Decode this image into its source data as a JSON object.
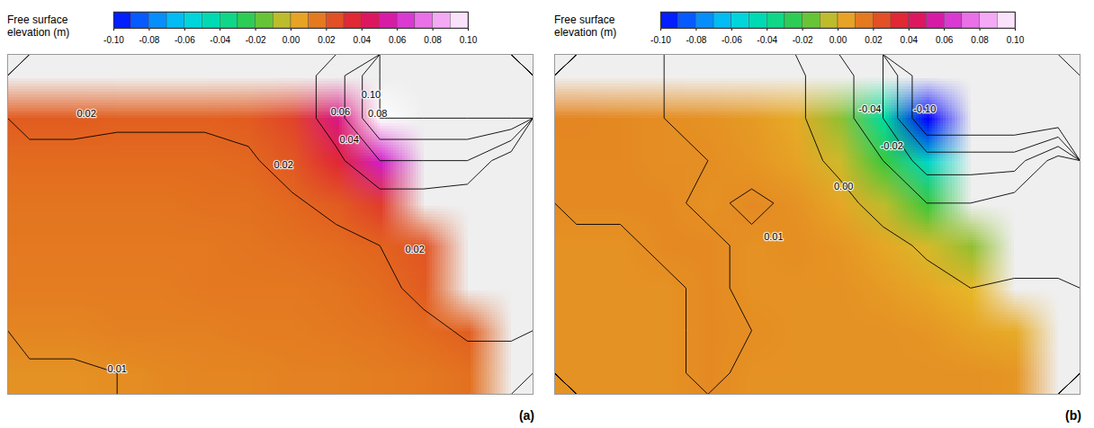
{
  "chart_data": [
    {
      "type": "contour",
      "panel_label": "(a)",
      "xlim": [
        0,
        12
      ],
      "ylim": [
        0,
        8
      ],
      "tick_labels": false,
      "colorbar": {
        "label": "Free surface elevation (m)",
        "range": [
          -0.1,
          0.1
        ],
        "ticks": [
          {
            "value": -0.1,
            "label": "-0.10"
          },
          {
            "value": -0.08,
            "label": "-0.08"
          },
          {
            "value": -0.06,
            "label": "-0.06"
          },
          {
            "value": -0.04,
            "label": "-0.04"
          },
          {
            "value": -0.02,
            "label": "-0.02"
          },
          {
            "value": 0,
            "label": "0.00"
          },
          {
            "value": 0.02,
            "label": "0.02"
          },
          {
            "value": 0.04,
            "label": "0.04"
          },
          {
            "value": 0.06,
            "label": "0.06"
          },
          {
            "value": 0.08,
            "label": "0.08"
          },
          {
            "value": 0.1,
            "label": "0.10"
          }
        ]
      },
      "contour_levels": [
        0.01,
        0.02,
        0.04,
        0.06,
        0.08,
        0.1
      ],
      "values": [
        [
          null,
          null,
          null,
          null,
          null,
          null,
          null,
          null,
          null,
          null,
          null,
          null
        ],
        [
          0.022,
          0.022,
          0.021,
          0.021,
          0.021,
          0.022,
          0.028,
          0.05,
          0.1,
          null,
          null,
          null
        ],
        [
          0.018,
          0.018,
          0.018,
          0.018,
          0.018,
          0.019,
          0.023,
          0.035,
          0.06,
          null,
          null,
          null
        ],
        [
          0.016,
          0.016,
          0.016,
          0.016,
          0.017,
          0.017,
          0.019,
          0.022,
          0.03,
          null,
          null,
          null
        ],
        [
          0.015,
          0.015,
          0.015,
          0.015,
          0.015,
          0.016,
          0.017,
          0.018,
          0.02,
          0.024,
          null,
          null
        ],
        [
          0.014,
          0.014,
          0.014,
          0.014,
          0.015,
          0.015,
          0.015,
          0.016,
          0.018,
          0.022,
          null,
          null
        ],
        [
          0.012,
          0.012,
          0.013,
          0.013,
          0.013,
          0.014,
          0.014,
          0.015,
          0.016,
          0.018,
          0.021,
          null
        ],
        [
          0.009,
          0.009,
          0.01,
          0.011,
          0.012,
          0.012,
          0.013,
          0.013,
          0.014,
          0.015,
          0.017,
          null
        ]
      ],
      "contour_labels": [
        {
          "value": 0.02,
          "label": "0.02",
          "x": 1.8,
          "y": 6.6
        },
        {
          "value": 0.1,
          "label": "0.10",
          "x": 8.3,
          "y": 7.05
        },
        {
          "value": 0.06,
          "label": "0.06",
          "x": 7.6,
          "y": 6.65
        },
        {
          "value": 0.08,
          "label": "0.08",
          "x": 8.45,
          "y": 6.6
        },
        {
          "value": 0.04,
          "label": "0.04",
          "x": 7.8,
          "y": 6.0
        },
        {
          "value": 0.02,
          "label": "0.02",
          "x": 6.3,
          "y": 5.4
        },
        {
          "value": 0.02,
          "label": "0.02",
          "x": 9.3,
          "y": 3.4
        },
        {
          "value": 0.01,
          "label": "0.01",
          "x": 2.5,
          "y": 0.6
        }
      ]
    },
    {
      "type": "contour",
      "panel_label": "(b)",
      "xlim": [
        0,
        12
      ],
      "ylim": [
        0,
        8
      ],
      "tick_labels": false,
      "colorbar": {
        "label": "Free surface elevation (m)",
        "range": [
          -0.1,
          0.1
        ],
        "ticks": [
          {
            "value": -0.1,
            "label": "-0.10"
          },
          {
            "value": -0.08,
            "label": "-0.08"
          },
          {
            "value": -0.06,
            "label": "-0.06"
          },
          {
            "value": -0.04,
            "label": "-0.04"
          },
          {
            "value": -0.02,
            "label": "-0.02"
          },
          {
            "value": 0,
            "label": "0.00"
          },
          {
            "value": 0.02,
            "label": "0.02"
          },
          {
            "value": 0.04,
            "label": "0.04"
          },
          {
            "value": 0.06,
            "label": "0.06"
          },
          {
            "value": 0.08,
            "label": "0.08"
          },
          {
            "value": 0.1,
            "label": "0.10"
          }
        ]
      },
      "contour_levels": [
        -0.1,
        -0.08,
        -0.06,
        -0.04,
        -0.02,
        0,
        0.01
      ],
      "values": [
        [
          null,
          null,
          null,
          null,
          null,
          null,
          null,
          null,
          null,
          null,
          null,
          null
        ],
        [
          0.012,
          0.011,
          0.01,
          0.009,
          0.007,
          0.003,
          -0.01,
          -0.04,
          -0.1,
          null,
          null,
          null
        ],
        [
          0.011,
          0.011,
          0.01,
          0.01,
          0.008,
          0.005,
          -0.003,
          -0.02,
          -0.05,
          null,
          null,
          null
        ],
        [
          0.011,
          0.011,
          0.011,
          0.009,
          0.011,
          0.009,
          0.004,
          -0.005,
          -0.02,
          null,
          null,
          null
        ],
        [
          0.009,
          0.009,
          0.011,
          0.011,
          0.009,
          0.01,
          0.008,
          0.004,
          -0.002,
          -0.01,
          null,
          null
        ],
        [
          0.009,
          0.009,
          0.009,
          0.011,
          0.009,
          0.009,
          0.009,
          0.007,
          0.004,
          0,
          null,
          null
        ],
        [
          0.009,
          0.009,
          0.009,
          0.011,
          0.01,
          0.009,
          0.009,
          0.009,
          0.008,
          0.005,
          0.003,
          null
        ],
        [
          0.009,
          0.009,
          0.009,
          0.011,
          0.009,
          0.009,
          0.009,
          0.009,
          0.009,
          0.009,
          0.008,
          null
        ]
      ],
      "contour_labels": [
        {
          "value": -0.04,
          "label": "-0.04",
          "x": 7.2,
          "y": 6.7
        },
        {
          "value": -0.1,
          "label": "-0.10",
          "x": 8.45,
          "y": 6.7
        },
        {
          "value": -0.02,
          "label": "-0.02",
          "x": 7.7,
          "y": 5.85
        },
        {
          "value": 0,
          "label": "0.00",
          "x": 6.6,
          "y": 4.9
        },
        {
          "value": 0.01,
          "label": "0.01",
          "x": 5.0,
          "y": 3.7
        }
      ]
    }
  ]
}
